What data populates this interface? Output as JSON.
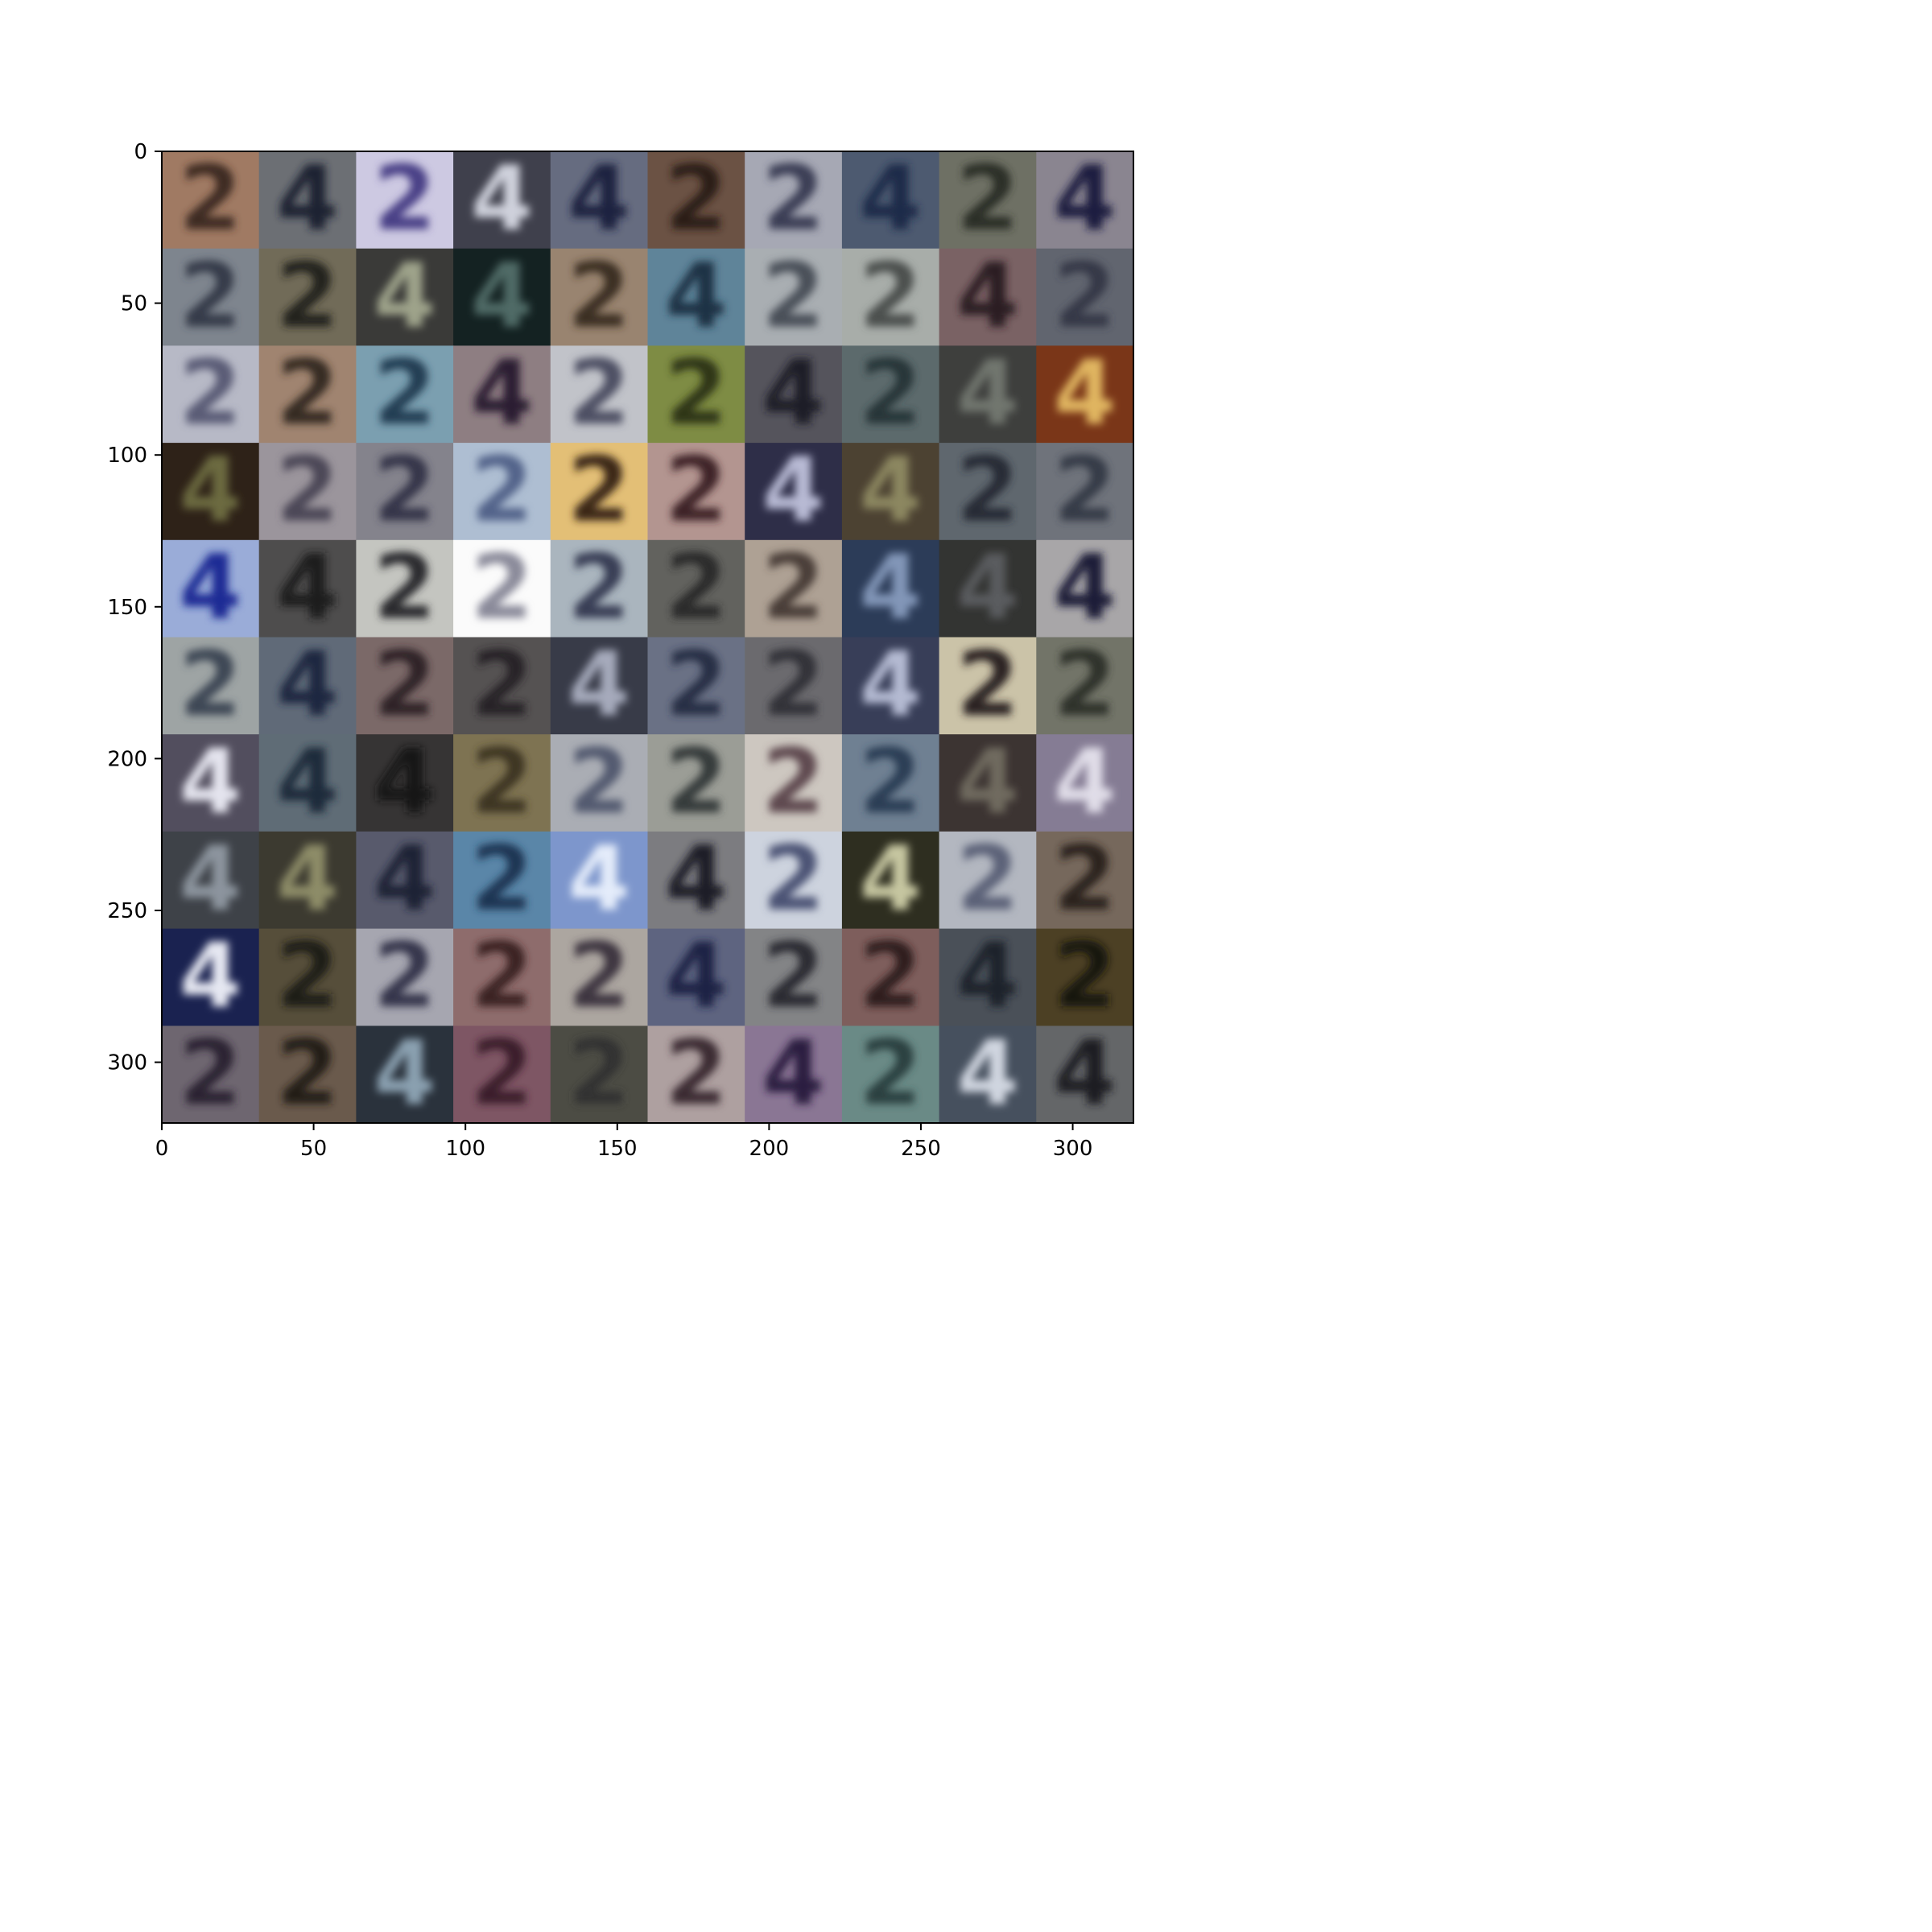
{
  "chart_data": {
    "type": "image-grid",
    "title": "",
    "xlabel": "",
    "ylabel": "",
    "xlim": [
      0,
      320
    ],
    "ylim": [
      320,
      0
    ],
    "x_ticks": [
      0,
      50,
      100,
      150,
      200,
      250,
      300
    ],
    "y_ticks": [
      0,
      50,
      100,
      150,
      200,
      250,
      300
    ],
    "x_tick_labels": [
      "0",
      "50",
      "100",
      "150",
      "200",
      "250",
      "300"
    ],
    "y_tick_labels": [
      "0",
      "50",
      "100",
      "150",
      "200",
      "250",
      "300"
    ],
    "grid": false,
    "rows": 10,
    "cols": 10,
    "tile_size": 32,
    "tiles": [
      [
        {
          "d": "2",
          "bg": "#a07a63",
          "fg": "#3c2a22"
        },
        {
          "d": "4",
          "bg": "#6c6f74",
          "fg": "#1e2230"
        },
        {
          "d": "2",
          "bg": "#cdc9e2",
          "fg": "#4a3f86"
        },
        {
          "d": "4",
          "bg": "#3f404c",
          "fg": "#cfd1dc"
        },
        {
          "d": "4",
          "bg": "#666c80",
          "fg": "#1c2240"
        },
        {
          "d": "2",
          "bg": "#6b5244",
          "fg": "#2a1e18"
        },
        {
          "d": "2",
          "bg": "#a6a8b4",
          "fg": "#3a3c55"
        },
        {
          "d": "4",
          "bg": "#4d5a70",
          "fg": "#1a2a48"
        },
        {
          "d": "2",
          "bg": "#6e7064",
          "fg": "#2c2e28"
        },
        {
          "d": "4",
          "bg": "#8a8590",
          "fg": "#1c1a40"
        }
      ],
      [
        {
          "d": "2",
          "bg": "#7e858e",
          "fg": "#363b48"
        },
        {
          "d": "2",
          "bg": "#716b58",
          "fg": "#23211a"
        },
        {
          "d": "4",
          "bg": "#3a3a38",
          "fg": "#9ea38a"
        },
        {
          "d": "4",
          "bg": "#142222",
          "fg": "#4f6a66"
        },
        {
          "d": "2",
          "bg": "#998470",
          "fg": "#3b2e22"
        },
        {
          "d": "4",
          "bg": "#5f8499",
          "fg": "#1e3245"
        },
        {
          "d": "2",
          "bg": "#a9aeb2",
          "fg": "#4a4f58"
        },
        {
          "d": "2",
          "bg": "#a8ada9",
          "fg": "#4b4f4e"
        },
        {
          "d": "4",
          "bg": "#7a6264",
          "fg": "#2a1a22"
        },
        {
          "d": "2",
          "bg": "#61656f",
          "fg": "#343846"
        }
      ],
      [
        {
          "d": "2",
          "bg": "#b7b9c6",
          "fg": "#5a5c76"
        },
        {
          "d": "2",
          "bg": "#a08470",
          "fg": "#362a20"
        },
        {
          "d": "2",
          "bg": "#7b9fb0",
          "fg": "#243c52"
        },
        {
          "d": "4",
          "bg": "#8e7e82",
          "fg": "#2c1a30"
        },
        {
          "d": "2",
          "bg": "#c1c3c9",
          "fg": "#4e5064"
        },
        {
          "d": "2",
          "bg": "#7e8c44",
          "fg": "#2e3414"
        },
        {
          "d": "4",
          "bg": "#55545c",
          "fg": "#1e1d26"
        },
        {
          "d": "2",
          "bg": "#5c6a6c",
          "fg": "#283638"
        },
        {
          "d": "4",
          "bg": "#3e3f3d",
          "fg": "#71766e"
        },
        {
          "d": "4",
          "bg": "#7a3618",
          "fg": "#e0b560"
        }
      ],
      [
        {
          "d": "4",
          "bg": "#2e2218",
          "fg": "#6c6a40"
        },
        {
          "d": "2",
          "bg": "#9b959c",
          "fg": "#4b4656"
        },
        {
          "d": "2",
          "bg": "#84838c",
          "fg": "#34344a"
        },
        {
          "d": "2",
          "bg": "#aebed2",
          "fg": "#52648a"
        },
        {
          "d": "2",
          "bg": "#e3bf76",
          "fg": "#3b2814"
        },
        {
          "d": "2",
          "bg": "#b39590",
          "fg": "#3e2426"
        },
        {
          "d": "4",
          "bg": "#2e2e48",
          "fg": "#b8bad4"
        },
        {
          "d": "4",
          "bg": "#4c4232",
          "fg": "#8c8760"
        },
        {
          "d": "2",
          "bg": "#5f676e",
          "fg": "#262c36"
        },
        {
          "d": "2",
          "bg": "#6f737b",
          "fg": "#353a46"
        }
      ],
      [
        {
          "d": "4",
          "bg": "#9aacd8",
          "fg": "#1a2c94"
        },
        {
          "d": "4",
          "bg": "#4e4d4d",
          "fg": "#1d1c1e"
        },
        {
          "d": "2",
          "bg": "#c4c5c0",
          "fg": "#2c2c2e"
        },
        {
          "d": "2",
          "bg": "#fbfbfb",
          "fg": "#8a8a9a"
        },
        {
          "d": "2",
          "bg": "#aab5be",
          "fg": "#383e54"
        },
        {
          "d": "2",
          "bg": "#62625e",
          "fg": "#2a2a2a"
        },
        {
          "d": "2",
          "bg": "#aea194",
          "fg": "#4a3e38"
        },
        {
          "d": "4",
          "bg": "#2c3c58",
          "fg": "#8296b8"
        },
        {
          "d": "4",
          "bg": "#333432",
          "fg": "#5a5c5e"
        },
        {
          "d": "4",
          "bg": "#a8a6a8",
          "fg": "#1c1a38"
        }
      ],
      [
        {
          "d": "2",
          "bg": "#9ea4a4",
          "fg": "#3e4654"
        },
        {
          "d": "4",
          "bg": "#606a78",
          "fg": "#1e2840"
        },
        {
          "d": "2",
          "bg": "#7b6968",
          "fg": "#2f2228"
        },
        {
          "d": "2",
          "bg": "#555252",
          "fg": "#252326"
        },
        {
          "d": "4",
          "bg": "#383b48",
          "fg": "#a6aabc"
        },
        {
          "d": "2",
          "bg": "#6a7185",
          "fg": "#272d45"
        },
        {
          "d": "2",
          "bg": "#6b6a6e",
          "fg": "#303038"
        },
        {
          "d": "4",
          "bg": "#383e58",
          "fg": "#b4bad2"
        },
        {
          "d": "2",
          "bg": "#cbc3a8",
          "fg": "#2c2420"
        },
        {
          "d": "2",
          "bg": "#727468",
          "fg": "#2e302a"
        }
      ],
      [
        {
          "d": "4",
          "bg": "#524e5e",
          "fg": "#e4e4ee"
        },
        {
          "d": "4",
          "bg": "#5f6c76",
          "fg": "#1e2a3a"
        },
        {
          "d": "4",
          "bg": "#363434",
          "fg": "#141414"
        },
        {
          "d": "2",
          "bg": "#7e7352",
          "fg": "#3e3622"
        },
        {
          "d": "2",
          "bg": "#aaadb4",
          "fg": "#525a70"
        },
        {
          "d": "2",
          "bg": "#9b9d96",
          "fg": "#363a3a"
        },
        {
          "d": "2",
          "bg": "#cdc7c0",
          "fg": "#5e4a50"
        },
        {
          "d": "2",
          "bg": "#6f8092",
          "fg": "#2c3c54"
        },
        {
          "d": "4",
          "bg": "#3c3432",
          "fg": "#706a5e"
        },
        {
          "d": "4",
          "bg": "#857c94",
          "fg": "#e0dde8"
        }
      ],
      [
        {
          "d": "4",
          "bg": "#3e4248",
          "fg": "#8c949e"
        },
        {
          "d": "4",
          "bg": "#3c3a30",
          "fg": "#8d8c68"
        },
        {
          "d": "4",
          "bg": "#585a6c",
          "fg": "#1e2034"
        },
        {
          "d": "2",
          "bg": "#5a86a8",
          "fg": "#1c3452"
        },
        {
          "d": "4",
          "bg": "#7d96cc",
          "fg": "#e4ecfa"
        },
        {
          "d": "4",
          "bg": "#7c7c80",
          "fg": "#1c1c28"
        },
        {
          "d": "2",
          "bg": "#cdd3de",
          "fg": "#4c5274"
        },
        {
          "d": "4",
          "bg": "#2e2e20",
          "fg": "#c6c6a0"
        },
        {
          "d": "2",
          "bg": "#b3b7c0",
          "fg": "#5c6278"
        },
        {
          "d": "2",
          "bg": "#76685c",
          "fg": "#2c221c"
        }
      ],
      [
        {
          "d": "4",
          "bg": "#1a2250",
          "fg": "#e6e8f2"
        },
        {
          "d": "2",
          "bg": "#564e3a",
          "fg": "#1e1a14"
        },
        {
          "d": "2",
          "bg": "#a6a6b0",
          "fg": "#34364c"
        },
        {
          "d": "2",
          "bg": "#8e6c6c",
          "fg": "#3a2024"
        },
        {
          "d": "2",
          "bg": "#aca6a0",
          "fg": "#3c3440"
        },
        {
          "d": "4",
          "bg": "#5e6480",
          "fg": "#1c2044"
        },
        {
          "d": "2",
          "bg": "#838486",
          "fg": "#2a2c30"
        },
        {
          "d": "2",
          "bg": "#7e5e5c",
          "fg": "#2e1c1e"
        },
        {
          "d": "4",
          "bg": "#4a5058",
          "fg": "#1a202c"
        },
        {
          "d": "2",
          "bg": "#4c4024",
          "fg": "#17140c"
        }
      ],
      [
        {
          "d": "2",
          "bg": "#6e6670",
          "fg": "#2a2432"
        },
        {
          "d": "2",
          "bg": "#6a5a4c",
          "fg": "#241c16"
        },
        {
          "d": "4",
          "bg": "#2a323c",
          "fg": "#8aa0b0"
        },
        {
          "d": "2",
          "bg": "#7e5664",
          "fg": "#3a1c2a"
        },
        {
          "d": "2",
          "bg": "#4c4c44",
          "fg": "#333330"
        },
        {
          "d": "2",
          "bg": "#aea0a0",
          "fg": "#3a2c30"
        },
        {
          "d": "4",
          "bg": "#8a7694",
          "fg": "#2c1a40"
        },
        {
          "d": "2",
          "bg": "#6a8a86",
          "fg": "#2a4040"
        },
        {
          "d": "4",
          "bg": "#46505e",
          "fg": "#d0d6e0"
        },
        {
          "d": "4",
          "bg": "#646668",
          "fg": "#1a1c22"
        }
      ]
    ]
  }
}
